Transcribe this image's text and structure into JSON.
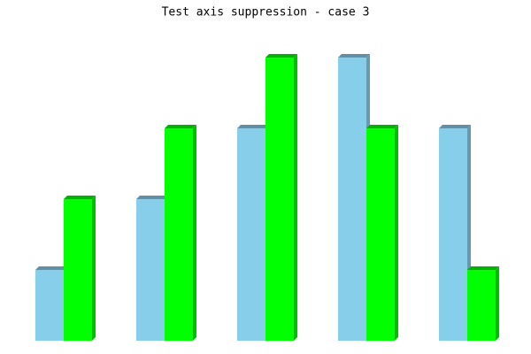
{
  "chart_data": {
    "type": "bar3d",
    "title": "Test axis suppression - case 3",
    "series": [
      {
        "color": "#87ceeb",
        "values": [
          1,
          2,
          3,
          4,
          3
        ]
      },
      {
        "color": "#00ff00",
        "values": [
          2,
          3,
          4,
          3,
          1
        ]
      }
    ],
    "ylim": [
      0,
      4
    ]
  }
}
